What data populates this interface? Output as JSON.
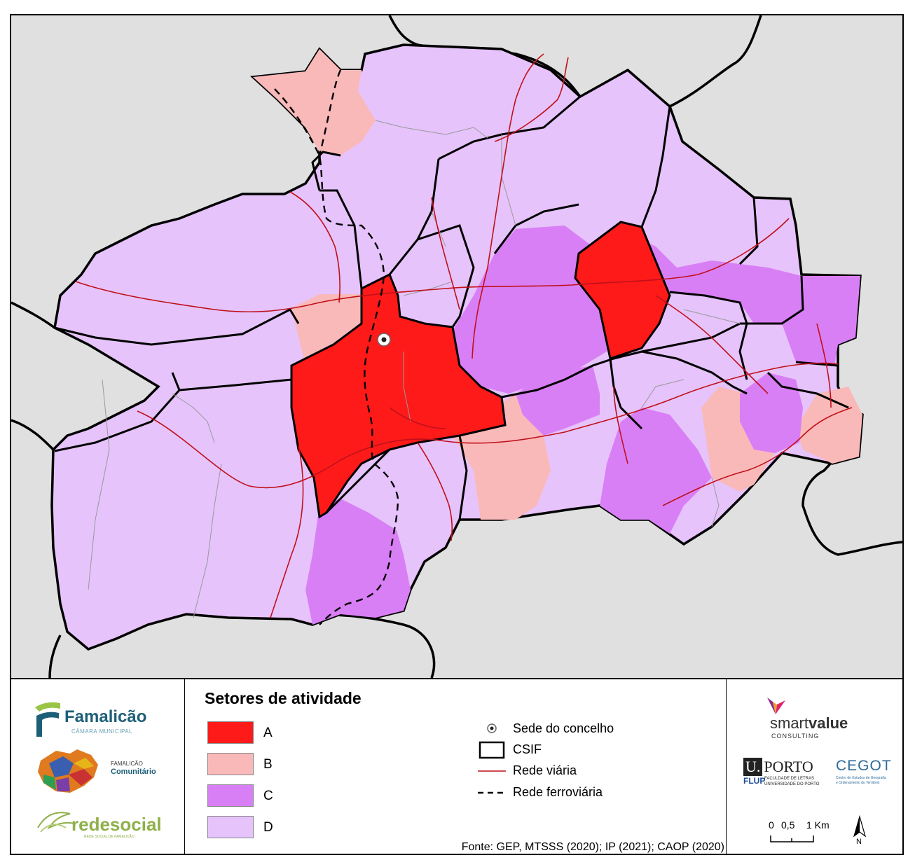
{
  "map": {
    "colors": {
      "background": "#e0e0e0",
      "A": "#ff1a1a",
      "B": "#fab9b9",
      "C": "#d97ff5",
      "D": "#e6c3fb",
      "road": "#c0101a",
      "border": "#000000"
    }
  },
  "legend": {
    "title": "Setores de atividade",
    "classes": [
      {
        "label": "A",
        "color": "#ff1a1a"
      },
      {
        "label": "B",
        "color": "#fab9b9"
      },
      {
        "label": "C",
        "color": "#d97ff5"
      },
      {
        "label": "D",
        "color": "#e6c3fb"
      }
    ],
    "symbols": [
      {
        "label": "Sede do concelho",
        "icon": "seat-marker"
      },
      {
        "label": "CSIF",
        "icon": "outline-box"
      },
      {
        "label": "Rede viária",
        "icon": "red-line"
      },
      {
        "label": "Rede ferroviária",
        "icon": "dashed-line"
      }
    ],
    "source": "Fonte: GEP, MTSSS (2020); IP (2021); CAOP (2020)"
  },
  "logos": {
    "famalicao": {
      "name": "Famalicão",
      "sub": "CÂMARA MUNICIPAL"
    },
    "comunitario": {
      "small": "FAMALICÃO",
      "big": "Comunitário"
    },
    "redesocial": {
      "name": "redesocial",
      "sub": "REDE SOCIAL DE FAMALICÃO"
    },
    "smartvalue": {
      "name_a": "smart",
      "name_b": "value",
      "sub": "CONSULTING"
    },
    "uporto": {
      "u": "U.",
      "name": "PORTO",
      "flup": "FLUP",
      "fac1": "FACULDADE DE LETRAS",
      "fac2": "UNIVERSIDADE DO PORTO"
    },
    "cegot": {
      "name": "CEGOT",
      "sub1": "Centro de Estudos de Geografia",
      "sub2": "e Ordenamento do Território"
    }
  },
  "scale": {
    "labels": [
      "0",
      "0,5",
      "1 Km"
    ],
    "north": "N"
  }
}
